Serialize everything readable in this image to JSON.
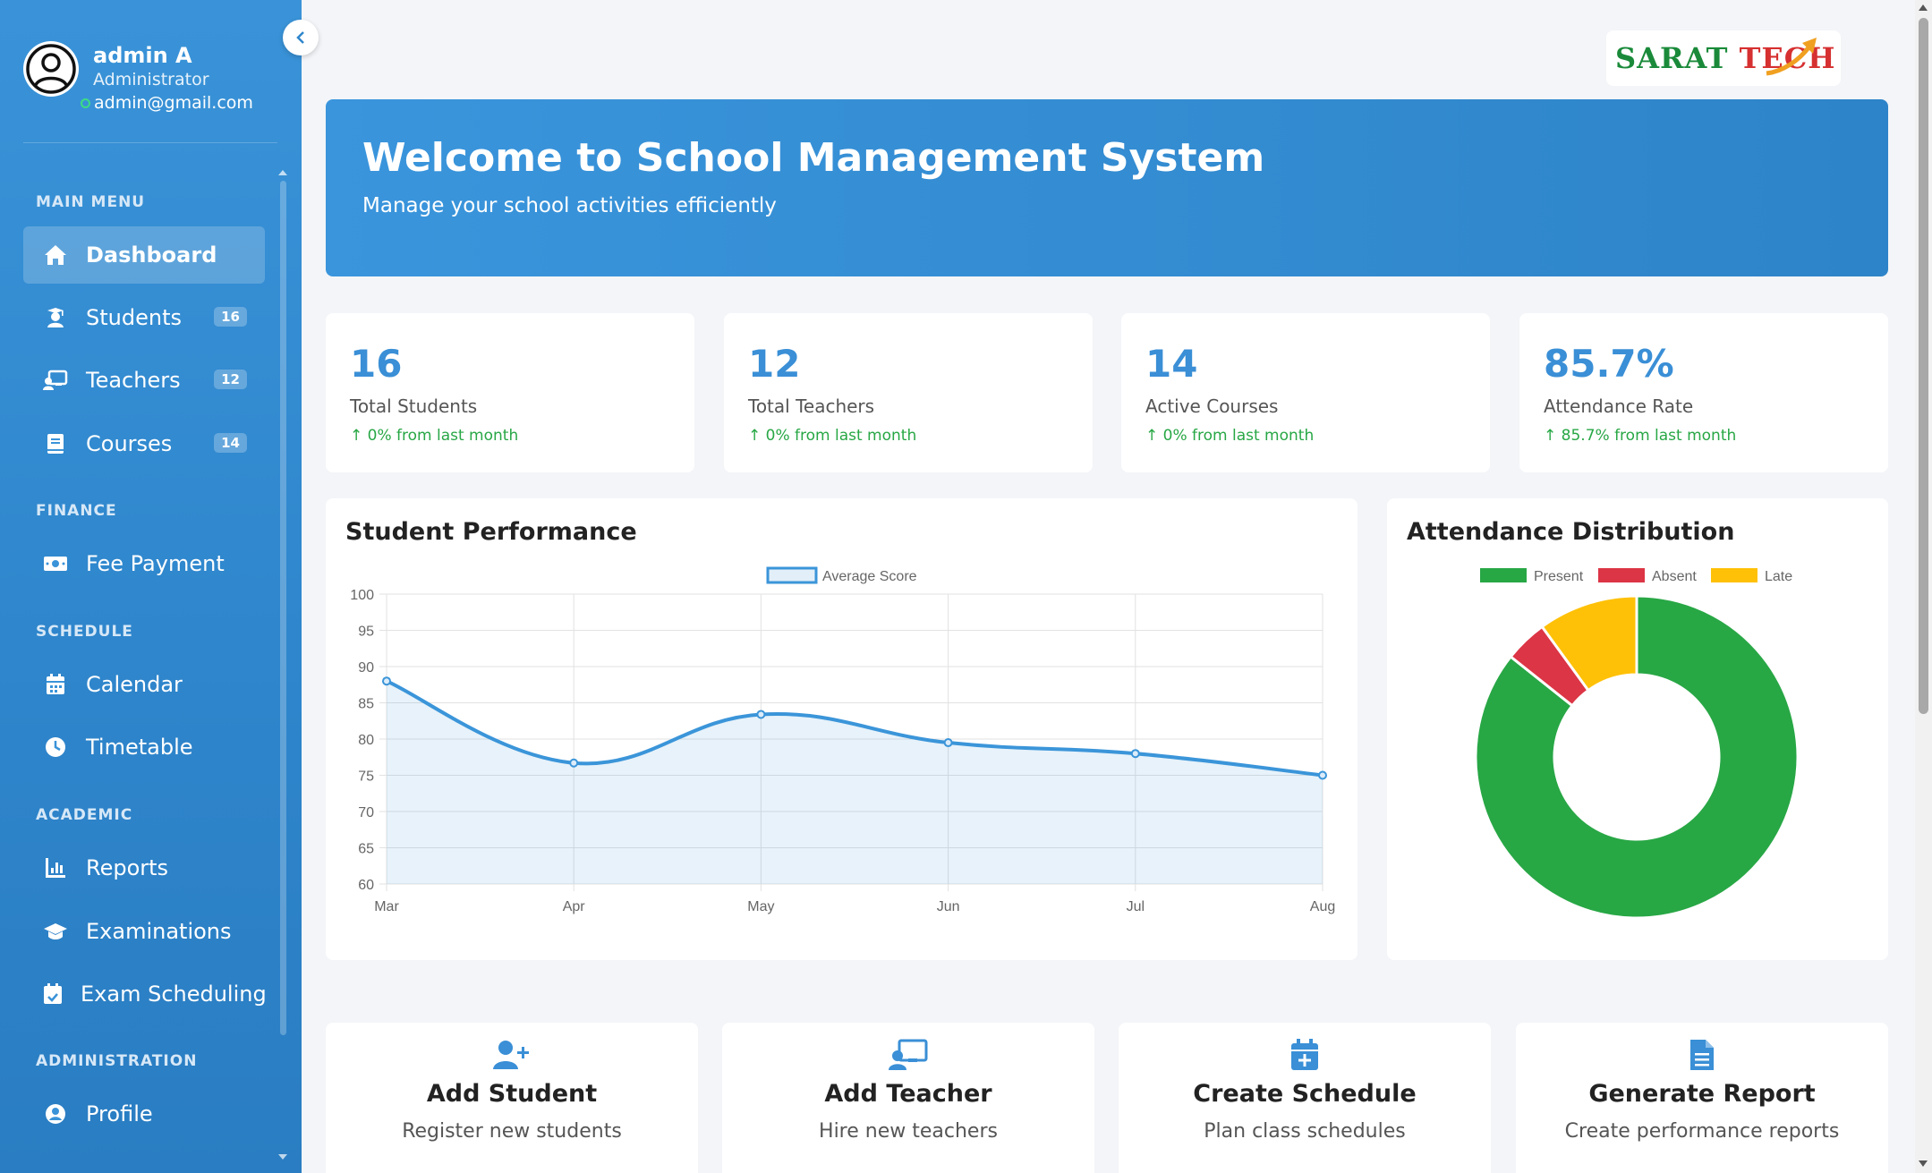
{
  "user": {
    "name": "admin A",
    "role": "Administrator",
    "email": "admin@gmail.com"
  },
  "sidebar": {
    "sections": {
      "main": "MAIN MENU",
      "finance": "FINANCE",
      "schedule": "SCHEDULE",
      "academic": "ACADEMIC",
      "administration": "ADMINISTRATION"
    },
    "items": [
      {
        "label": "Dashboard",
        "icon": "home-icon",
        "active": true
      },
      {
        "label": "Students",
        "icon": "student-icon",
        "badge": "16"
      },
      {
        "label": "Teachers",
        "icon": "teacher-icon",
        "badge": "12"
      },
      {
        "label": "Courses",
        "icon": "book-icon",
        "badge": "14"
      },
      {
        "label": "Fee Payment",
        "icon": "money-icon"
      },
      {
        "label": "Calendar",
        "icon": "calendar-icon"
      },
      {
        "label": "Timetable",
        "icon": "clock-icon"
      },
      {
        "label": "Reports",
        "icon": "bar-chart-icon"
      },
      {
        "label": "Examinations",
        "icon": "graduation-cap-icon"
      },
      {
        "label": "Exam Scheduling",
        "icon": "calendar-check-icon"
      },
      {
        "label": "Profile",
        "icon": "user-circle-icon"
      }
    ]
  },
  "logo": {
    "text_green": "SARAT ",
    "text_red": "TECH",
    "colors": {
      "green": "#1a8a3a",
      "red": "#d63030",
      "arrow": "#f0a020"
    }
  },
  "banner": {
    "title": "Welcome to School Management System",
    "subtitle": "Manage your school activities efficiently"
  },
  "stats": [
    {
      "value": "16",
      "label": "Total Students",
      "change": "0% from last month"
    },
    {
      "value": "12",
      "label": "Total Teachers",
      "change": "0% from last month"
    },
    {
      "value": "14",
      "label": "Active Courses",
      "change": "0% from last month"
    },
    {
      "value": "85.7%",
      "label": "Attendance Rate",
      "change": "85.7% from last month"
    }
  ],
  "chart_data": [
    {
      "type": "line",
      "title": "Student Performance",
      "categories": [
        "Mar",
        "Apr",
        "May",
        "Jun",
        "Jul",
        "Aug"
      ],
      "series": [
        {
          "name": "Average Score",
          "values": [
            88,
            76.7,
            83.4,
            79.5,
            78,
            75
          ],
          "color": "#3b95d9"
        }
      ],
      "ylim": [
        60,
        100
      ],
      "yticks": [
        100,
        95,
        90,
        85,
        80,
        75,
        70,
        65,
        60
      ],
      "fill": true,
      "grid": true,
      "legend": "top-center"
    },
    {
      "type": "pie",
      "title": "Attendance Distribution",
      "labels": [
        "Present",
        "Absent",
        "Late"
      ],
      "values": [
        85.7,
        4.3,
        10
      ],
      "colors": [
        "#28a745",
        "#dc3545",
        "#ffc107"
      ],
      "donut": true,
      "legend": "top-center"
    }
  ],
  "quick_actions": [
    {
      "title": "Add Student",
      "desc": "Register new students",
      "icon": "user-plus-icon"
    },
    {
      "title": "Add Teacher",
      "desc": "Hire new teachers",
      "icon": "teacher-board-icon"
    },
    {
      "title": "Create Schedule",
      "desc": "Plan class schedules",
      "icon": "calendar-plus-icon"
    },
    {
      "title": "Generate Report",
      "desc": "Create performance reports",
      "icon": "file-text-icon"
    }
  ]
}
